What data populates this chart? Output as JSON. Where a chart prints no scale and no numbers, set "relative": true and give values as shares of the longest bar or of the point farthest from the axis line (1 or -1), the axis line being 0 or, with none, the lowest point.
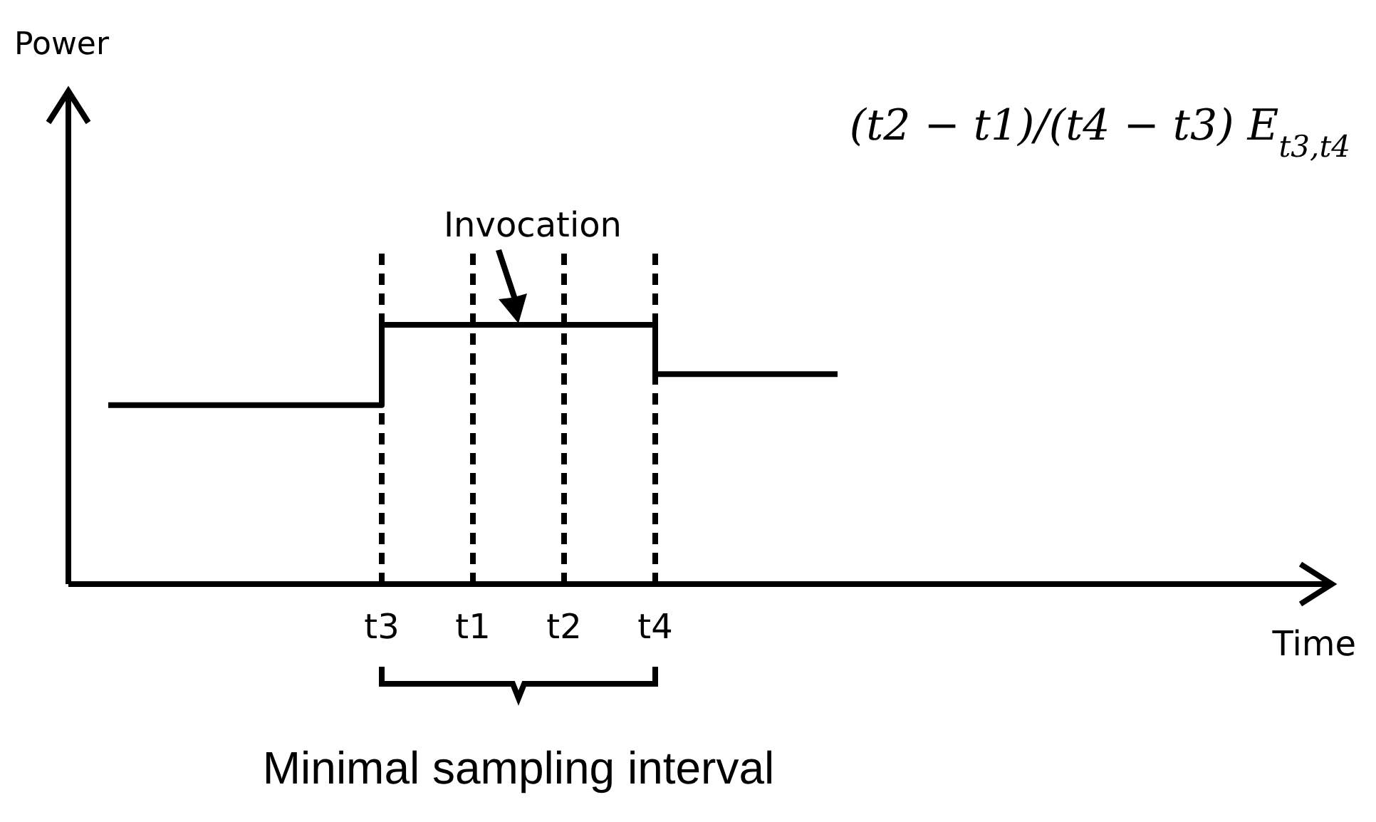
{
  "chart_data": {
    "type": "step",
    "relative": true,
    "categories": [
      null,
      null,
      null,
      "t3",
      "t1",
      "t2",
      "t4",
      null,
      null
    ],
    "series": [
      {
        "color": "#000000",
        "values": [
          0.69,
          0.69,
          0.69,
          1,
          1,
          1,
          0.81,
          0.81,
          0.81
        ]
      }
    ],
    "ref_lines": [
      {
        "axis": "x",
        "value": "t3",
        "line_style": "dashed",
        "color": "#000000"
      },
      {
        "axis": "x",
        "value": "t1",
        "line_style": "dashed",
        "color": "#000000"
      },
      {
        "axis": "x",
        "value": "t2",
        "line_style": "dashed",
        "color": "#000000"
      },
      {
        "axis": "x",
        "value": "t4",
        "line_style": "dashed",
        "color": "#000000"
      }
    ],
    "annotations": [
      "Invocation",
      "(t2 − t1)/(t4 − t3) E$_{t3,t4}$",
      "Minimal sampling interval",
      "Power",
      "Time"
    ]
  }
}
